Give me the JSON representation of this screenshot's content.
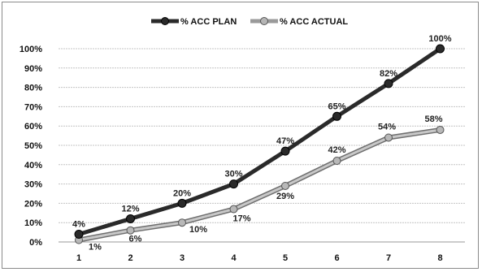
{
  "chart_data": {
    "type": "line",
    "x": [
      1,
      2,
      3,
      4,
      5,
      6,
      7,
      8
    ],
    "ylim": [
      0,
      100
    ],
    "yticks": [
      "0%",
      "10%",
      "20%",
      "30%",
      "40%",
      "50%",
      "60%",
      "70%",
      "80%",
      "90%",
      "100%"
    ],
    "grid": true,
    "legend_position": "top",
    "series": [
      {
        "name": "% ACC PLAN",
        "values": [
          4,
          12,
          20,
          30,
          47,
          65,
          82,
          100
        ],
        "labels": [
          "4%",
          "12%",
          "20%",
          "30%",
          "47%",
          "65%",
          "82%",
          "100%"
        ],
        "color": "#2a2a2a"
      },
      {
        "name": "% ACC ACTUAL",
        "values": [
          1,
          6,
          10,
          17,
          29,
          42,
          54,
          58
        ],
        "labels": [
          "1%",
          "6%",
          "10%",
          "17%",
          "29%",
          "42%",
          "54%",
          "58%"
        ],
        "color": "#9a9a9a"
      }
    ]
  }
}
